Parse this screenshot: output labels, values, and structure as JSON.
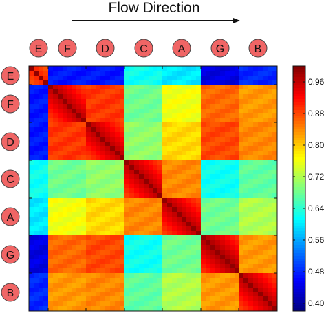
{
  "chart_data": {
    "type": "heatmap",
    "title": "Flow Direction",
    "x_labels": [
      "E",
      "F",
      "D",
      "C",
      "A",
      "G",
      "B"
    ],
    "y_labels": [
      "E",
      "F",
      "D",
      "C",
      "A",
      "G",
      "B"
    ],
    "group_sizes": [
      4,
      8,
      8,
      8,
      8,
      8,
      8
    ],
    "block_means": [
      [
        0.88,
        0.47,
        0.47,
        0.62,
        0.6,
        0.44,
        0.48
      ],
      [
        0.47,
        0.94,
        0.89,
        0.68,
        0.76,
        0.86,
        0.83
      ],
      [
        0.47,
        0.89,
        0.94,
        0.7,
        0.79,
        0.88,
        0.84
      ],
      [
        0.62,
        0.68,
        0.7,
        0.94,
        0.84,
        0.62,
        0.67
      ],
      [
        0.6,
        0.76,
        0.79,
        0.84,
        0.94,
        0.68,
        0.72
      ],
      [
        0.44,
        0.86,
        0.88,
        0.62,
        0.68,
        0.95,
        0.83
      ],
      [
        0.48,
        0.83,
        0.84,
        0.67,
        0.72,
        0.83,
        0.94
      ]
    ],
    "colorbar": {
      "min": 0.38,
      "max": 1.0,
      "ticks": [
        "0.96",
        "0.88",
        "0.80",
        "0.72",
        "0.64",
        "0.56",
        "0.48",
        "0.40"
      ],
      "colormap": "jet"
    },
    "label_circle_color": "#f06565",
    "label_circle_stroke": "#444444"
  }
}
